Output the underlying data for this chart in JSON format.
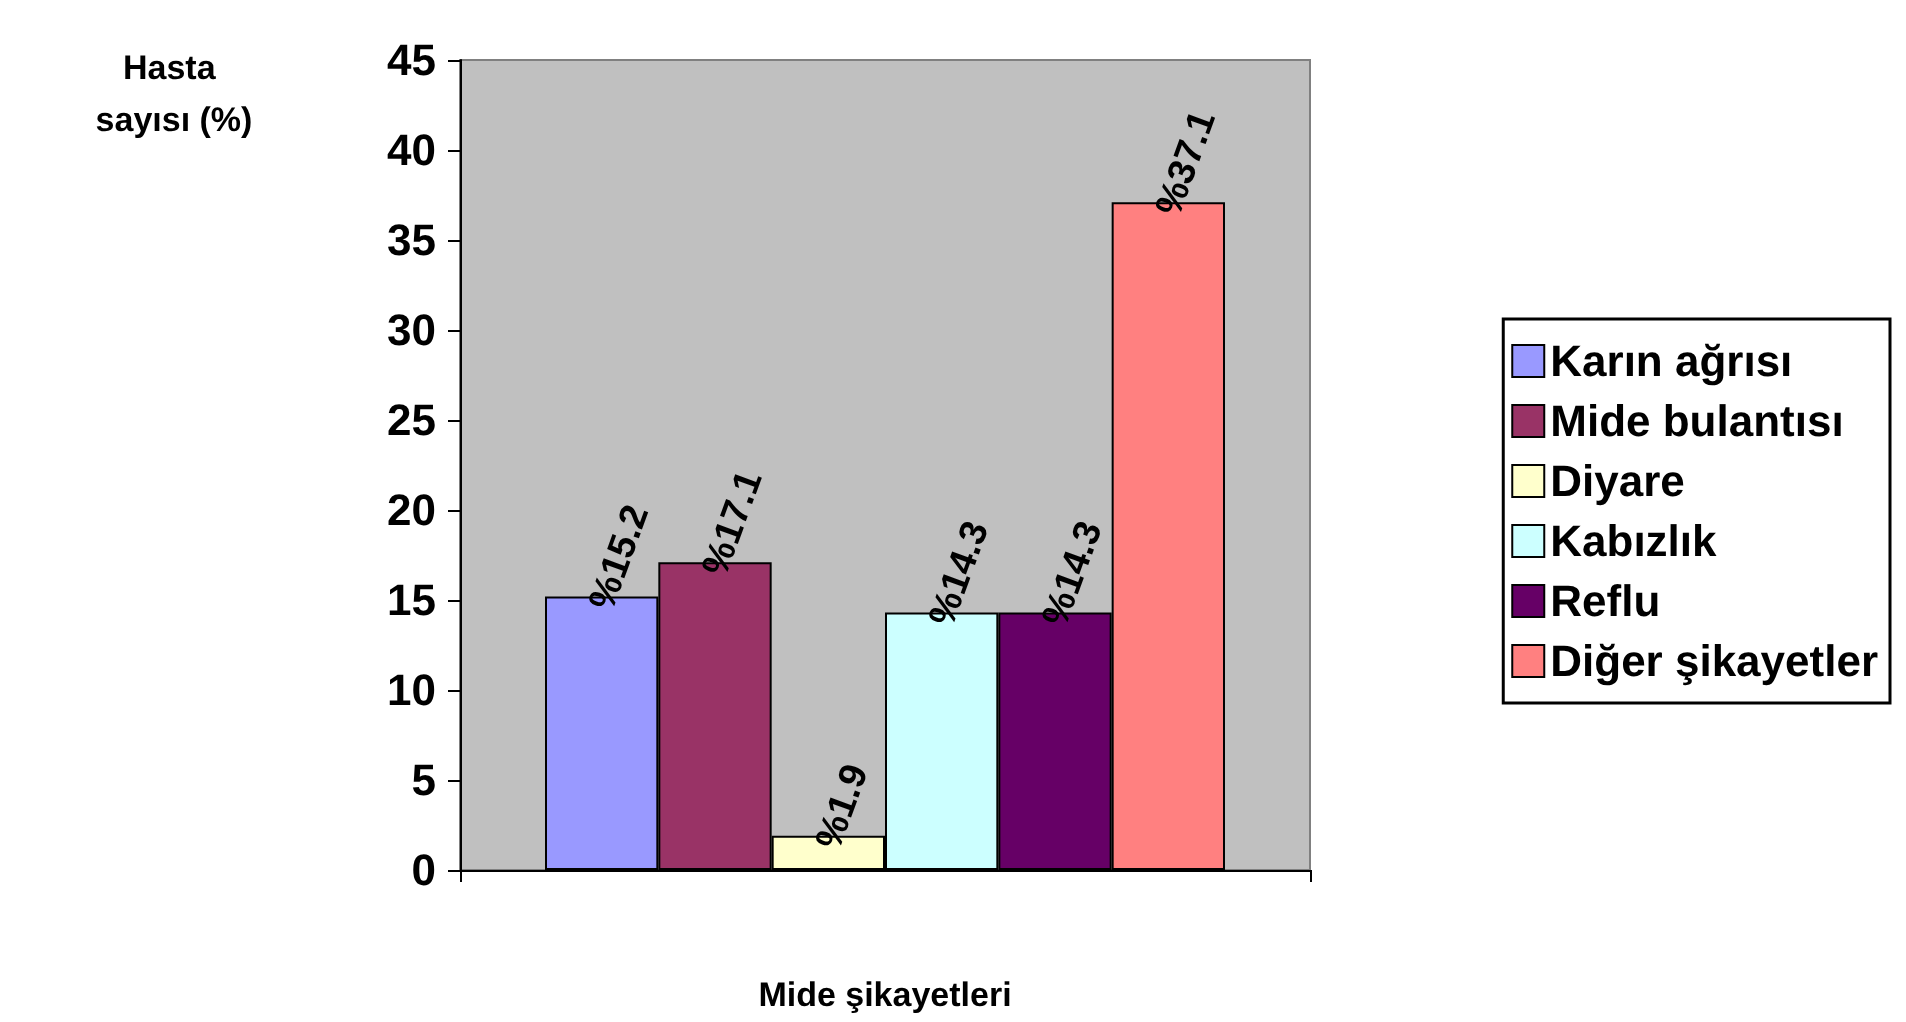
{
  "chart_data": {
    "type": "bar",
    "ylabel": "Hasta sayısı (%)",
    "xlabel": "Mide şikayetleri",
    "categories": [
      null
    ],
    "series": [
      {
        "name": "Karın ağrısı",
        "color": "#9999ff",
        "values": [
          15.2
        ],
        "value_labels": [
          "%15.2"
        ]
      },
      {
        "name": "Mide bulantısı",
        "color": "#993366",
        "values": [
          17.1
        ],
        "value_labels": [
          "%17.1"
        ]
      },
      {
        "name": "Diyare",
        "color": "#ffffcc",
        "values": [
          1.9
        ],
        "value_labels": [
          "%1.9"
        ]
      },
      {
        "name": "Kabızlık",
        "color": "#ccffff",
        "values": [
          14.3
        ],
        "value_labels": [
          "%14.3"
        ]
      },
      {
        "name": "Reflu",
        "color": "#660066",
        "values": [
          14.3
        ],
        "value_labels": [
          "%14.3"
        ]
      },
      {
        "name": "Diğer şikayetler",
        "color": "#ff8080",
        "values": [
          37.1
        ],
        "value_labels": [
          "%37.1"
        ]
      }
    ],
    "ylim": [
      0,
      45
    ],
    "yticks": [
      0,
      5,
      10,
      15,
      20,
      25,
      30,
      35,
      40,
      45
    ],
    "grid": false,
    "legend": "right"
  }
}
